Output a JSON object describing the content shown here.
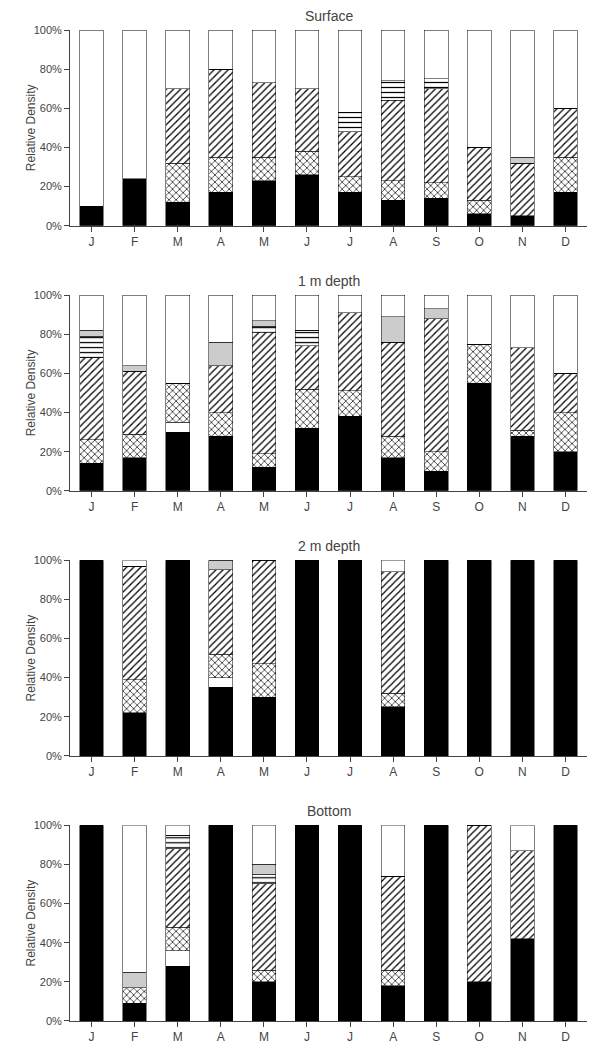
{
  "chart_data": [
    {
      "type": "bar",
      "title": "Surface",
      "ylabel": "Relative Density",
      "categories": [
        "J",
        "F",
        "M",
        "A",
        "M",
        "J",
        "J",
        "A",
        "S",
        "O",
        "N",
        "D"
      ],
      "stacked": true,
      "grid": false,
      "ylim": [
        0,
        1.0
      ],
      "yticks": [
        {
          "value": 0,
          "label": "0%"
        },
        {
          "value": 0.2,
          "label": "20%"
        },
        {
          "value": 0.4,
          "label": "40%"
        },
        {
          "value": 0.6,
          "label": "60%"
        },
        {
          "value": 0.8,
          "label": "80%"
        },
        {
          "value": 1.0,
          "label": "100%"
        }
      ],
      "series": [
        {
          "color": "black",
          "values": [
            0.1,
            0.24,
            0.12,
            0.17,
            0.23,
            0.26,
            0.17,
            0.13,
            0.14,
            0.06,
            0.05,
            0.17
          ]
        },
        {
          "color": "white",
          "values": [
            0,
            0,
            0,
            0,
            0,
            0,
            0,
            0,
            0,
            0,
            0,
            0
          ]
        },
        {
          "color": "white",
          "marker": "cross",
          "values": [
            0,
            0,
            0.2,
            0.18,
            0.12,
            0.12,
            0.08,
            0.1,
            0.08,
            0.07,
            0,
            0.18
          ]
        },
        {
          "color": "white",
          "marker": "diagonal",
          "values": [
            0,
            0,
            0.38,
            0.45,
            0.38,
            0.32,
            0.23,
            0.41,
            0.48,
            0.27,
            0.27,
            0.25
          ]
        },
        {
          "color": "white",
          "marker": "horizontal",
          "values": [
            0,
            0,
            0,
            0,
            0,
            0,
            0.1,
            0.1,
            0.05,
            0,
            0,
            0
          ]
        },
        {
          "color": "#cccccc",
          "values": [
            0,
            0,
            0,
            0,
            0,
            0,
            0,
            0,
            0,
            0,
            0.03,
            0
          ]
        },
        {
          "color": "white",
          "values": [
            0.9,
            0.76,
            0.3,
            0.2,
            0.27,
            0.3,
            0.42,
            0.26,
            0.25,
            0.6,
            0.65,
            0.4
          ]
        }
      ]
    },
    {
      "type": "bar",
      "title": "1 m depth",
      "ylabel": "Relative Density",
      "categories": [
        "J",
        "F",
        "M",
        "A",
        "M",
        "J",
        "J",
        "A",
        "S",
        "O",
        "N",
        "D"
      ],
      "stacked": true,
      "grid": false,
      "ylim": [
        0,
        1.0
      ],
      "yticks": [
        {
          "value": 0,
          "label": "0%"
        },
        {
          "value": 0.2,
          "label": "20%"
        },
        {
          "value": 0.4,
          "label": "40%"
        },
        {
          "value": 0.6,
          "label": "60%"
        },
        {
          "value": 0.8,
          "label": "80%"
        },
        {
          "value": 1.0,
          "label": "100%"
        }
      ],
      "series": [
        {
          "color": "black",
          "values": [
            0.14,
            0.17,
            0.3,
            0.28,
            0.12,
            0.32,
            0.38,
            0.17,
            0.1,
            0.55,
            0.28,
            0.2
          ]
        },
        {
          "color": "white",
          "values": [
            0,
            0,
            0.05,
            0,
            0,
            0,
            0,
            0,
            0,
            0,
            0,
            0
          ]
        },
        {
          "color": "white",
          "marker": "cross",
          "values": [
            0.12,
            0.12,
            0.2,
            0.12,
            0.07,
            0.2,
            0.13,
            0.11,
            0.1,
            0.2,
            0.03,
            0.2
          ]
        },
        {
          "color": "white",
          "marker": "diagonal",
          "values": [
            0.42,
            0.32,
            0,
            0.24,
            0.62,
            0.22,
            0.4,
            0.48,
            0.68,
            0,
            0.42,
            0.2
          ]
        },
        {
          "color": "white",
          "marker": "horizontal",
          "values": [
            0.11,
            0,
            0,
            0,
            0.03,
            0.08,
            0,
            0,
            0,
            0,
            0,
            0
          ]
        },
        {
          "color": "#cccccc",
          "values": [
            0.03,
            0.03,
            0,
            0.12,
            0.03,
            0,
            0,
            0.13,
            0.05,
            0,
            0,
            0
          ]
        },
        {
          "color": "white",
          "values": [
            0.18,
            0.36,
            0.45,
            0.24,
            0.13,
            0.18,
            0.09,
            0.11,
            0.07,
            0.25,
            0.27,
            0.4
          ]
        }
      ]
    },
    {
      "type": "bar",
      "title": "2 m depth",
      "ylabel": "Relative Density",
      "categories": [
        "J",
        "F",
        "M",
        "A",
        "M",
        "J",
        "J",
        "A",
        "S",
        "O",
        "N",
        "D"
      ],
      "stacked": true,
      "grid": false,
      "ylim": [
        0,
        1.0
      ],
      "yticks": [
        {
          "value": 0,
          "label": "0%"
        },
        {
          "value": 0.2,
          "label": "20%"
        },
        {
          "value": 0.4,
          "label": "40%"
        },
        {
          "value": 0.6,
          "label": "60%"
        },
        {
          "value": 0.8,
          "label": "80%"
        },
        {
          "value": 1.0,
          "label": "100%"
        }
      ],
      "series": [
        {
          "color": "black",
          "values": [
            1.0,
            0.22,
            1.0,
            0.35,
            0.3,
            1.0,
            1.0,
            0.25,
            1.0,
            1.0,
            1.0,
            1.0
          ]
        },
        {
          "color": "white",
          "values": [
            0,
            0,
            0,
            0.05,
            0,
            0,
            0,
            0,
            0,
            0,
            0,
            0
          ]
        },
        {
          "color": "white",
          "marker": "cross",
          "values": [
            0,
            0.17,
            0,
            0.12,
            0.17,
            0,
            0,
            0.07,
            0,
            0,
            0,
            0
          ]
        },
        {
          "color": "white",
          "marker": "diagonal",
          "values": [
            0,
            0.58,
            0,
            0.43,
            0.53,
            0,
            0,
            0.62,
            0,
            0,
            0,
            0
          ]
        },
        {
          "color": "white",
          "marker": "horizontal",
          "values": [
            0,
            0,
            0,
            0,
            0,
            0,
            0,
            0,
            0,
            0,
            0,
            0
          ]
        },
        {
          "color": "#cccccc",
          "values": [
            0,
            0,
            0,
            0.05,
            0,
            0,
            0,
            0,
            0,
            0,
            0,
            0
          ]
        },
        {
          "color": "white",
          "values": [
            0,
            0.03,
            0,
            0,
            0,
            0,
            0,
            0.06,
            0,
            0,
            0,
            0
          ]
        }
      ]
    },
    {
      "type": "bar",
      "title": "Bottom",
      "ylabel": "Relative Density",
      "categories": [
        "J",
        "F",
        "M",
        "A",
        "M",
        "J",
        "J",
        "A",
        "S",
        "O",
        "N",
        "D"
      ],
      "stacked": true,
      "grid": false,
      "ylim": [
        0,
        1.0
      ],
      "yticks": [
        {
          "value": 0,
          "label": "0%"
        },
        {
          "value": 0.2,
          "label": "20%"
        },
        {
          "value": 0.4,
          "label": "40%"
        },
        {
          "value": 0.6,
          "label": "60%"
        },
        {
          "value": 0.8,
          "label": "80%"
        },
        {
          "value": 1.0,
          "label": "100%"
        }
      ],
      "series": [
        {
          "color": "black",
          "values": [
            1.0,
            0.09,
            0.28,
            1.0,
            0.2,
            1.0,
            1.0,
            0.18,
            1.0,
            0.2,
            0.42,
            1.0
          ]
        },
        {
          "color": "white",
          "values": [
            0,
            0,
            0.08,
            0,
            0,
            0,
            0,
            0,
            0,
            0,
            0,
            0
          ]
        },
        {
          "color": "white",
          "marker": "cross",
          "values": [
            0,
            0.08,
            0.12,
            0,
            0.06,
            0,
            0,
            0.08,
            0,
            0,
            0,
            0
          ]
        },
        {
          "color": "white",
          "marker": "diagonal",
          "values": [
            0,
            0,
            0.4,
            0,
            0.44,
            0,
            0,
            0.48,
            0,
            0.8,
            0.45,
            0
          ]
        },
        {
          "color": "white",
          "marker": "horizontal",
          "values": [
            0,
            0,
            0.07,
            0,
            0.05,
            0,
            0,
            0,
            0,
            0,
            0,
            0
          ]
        },
        {
          "color": "#cccccc",
          "values": [
            0,
            0.08,
            0,
            0,
            0.05,
            0,
            0,
            0,
            0,
            0,
            0,
            0
          ]
        },
        {
          "color": "white",
          "values": [
            0,
            0.75,
            0.05,
            0,
            0.2,
            0,
            0,
            0.26,
            0,
            0,
            0.13,
            0
          ]
        }
      ]
    }
  ]
}
